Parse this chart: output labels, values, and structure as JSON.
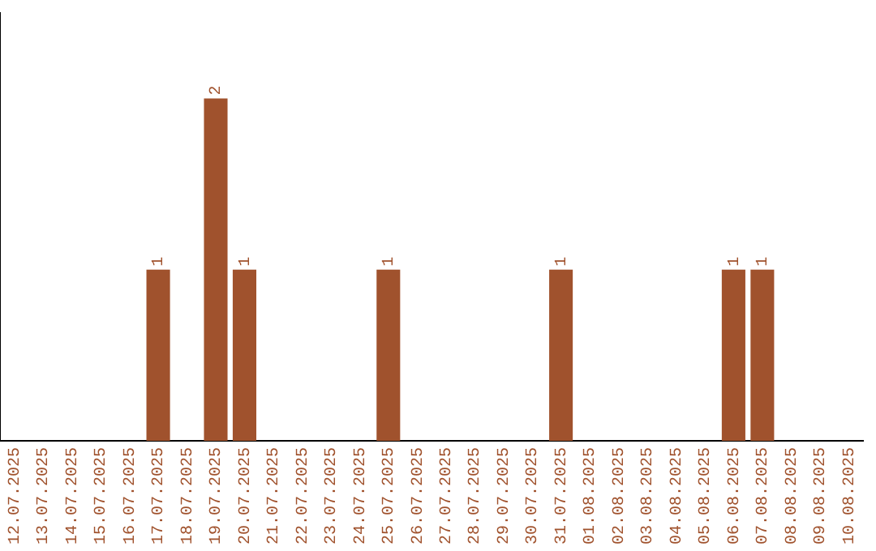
{
  "chart_data": {
    "type": "bar",
    "categories": [
      "12.07.2025",
      "13.07.2025",
      "14.07.2025",
      "15.07.2025",
      "16.07.2025",
      "17.07.2025",
      "18.07.2025",
      "19.07.2025",
      "20.07.2025",
      "21.07.2025",
      "22.07.2025",
      "23.07.2025",
      "24.07.2025",
      "25.07.2025",
      "26.07.2025",
      "27.07.2025",
      "28.07.2025",
      "29.07.2025",
      "30.07.2025",
      "31.07.2025",
      "01.08.2025",
      "02.08.2025",
      "03.08.2025",
      "04.08.2025",
      "05.08.2025",
      "06.08.2025",
      "07.08.2025",
      "08.08.2025",
      "09.08.2025",
      "10.08.2025"
    ],
    "values": [
      0,
      0,
      0,
      0,
      0,
      1,
      0,
      2,
      1,
      0,
      0,
      0,
      0,
      1,
      0,
      0,
      0,
      0,
      0,
      1,
      0,
      0,
      0,
      0,
      0,
      1,
      1,
      0,
      0,
      0
    ],
    "value_labels": [
      null,
      null,
      null,
      null,
      null,
      "1",
      null,
      "2",
      "1",
      null,
      null,
      null,
      null,
      "1",
      null,
      null,
      null,
      null,
      null,
      "1",
      null,
      null,
      null,
      null,
      null,
      "1",
      "1",
      null,
      null,
      null
    ],
    "color": "#a0522d",
    "grid": false,
    "legend": false,
    "tick_labels": "x"
  }
}
